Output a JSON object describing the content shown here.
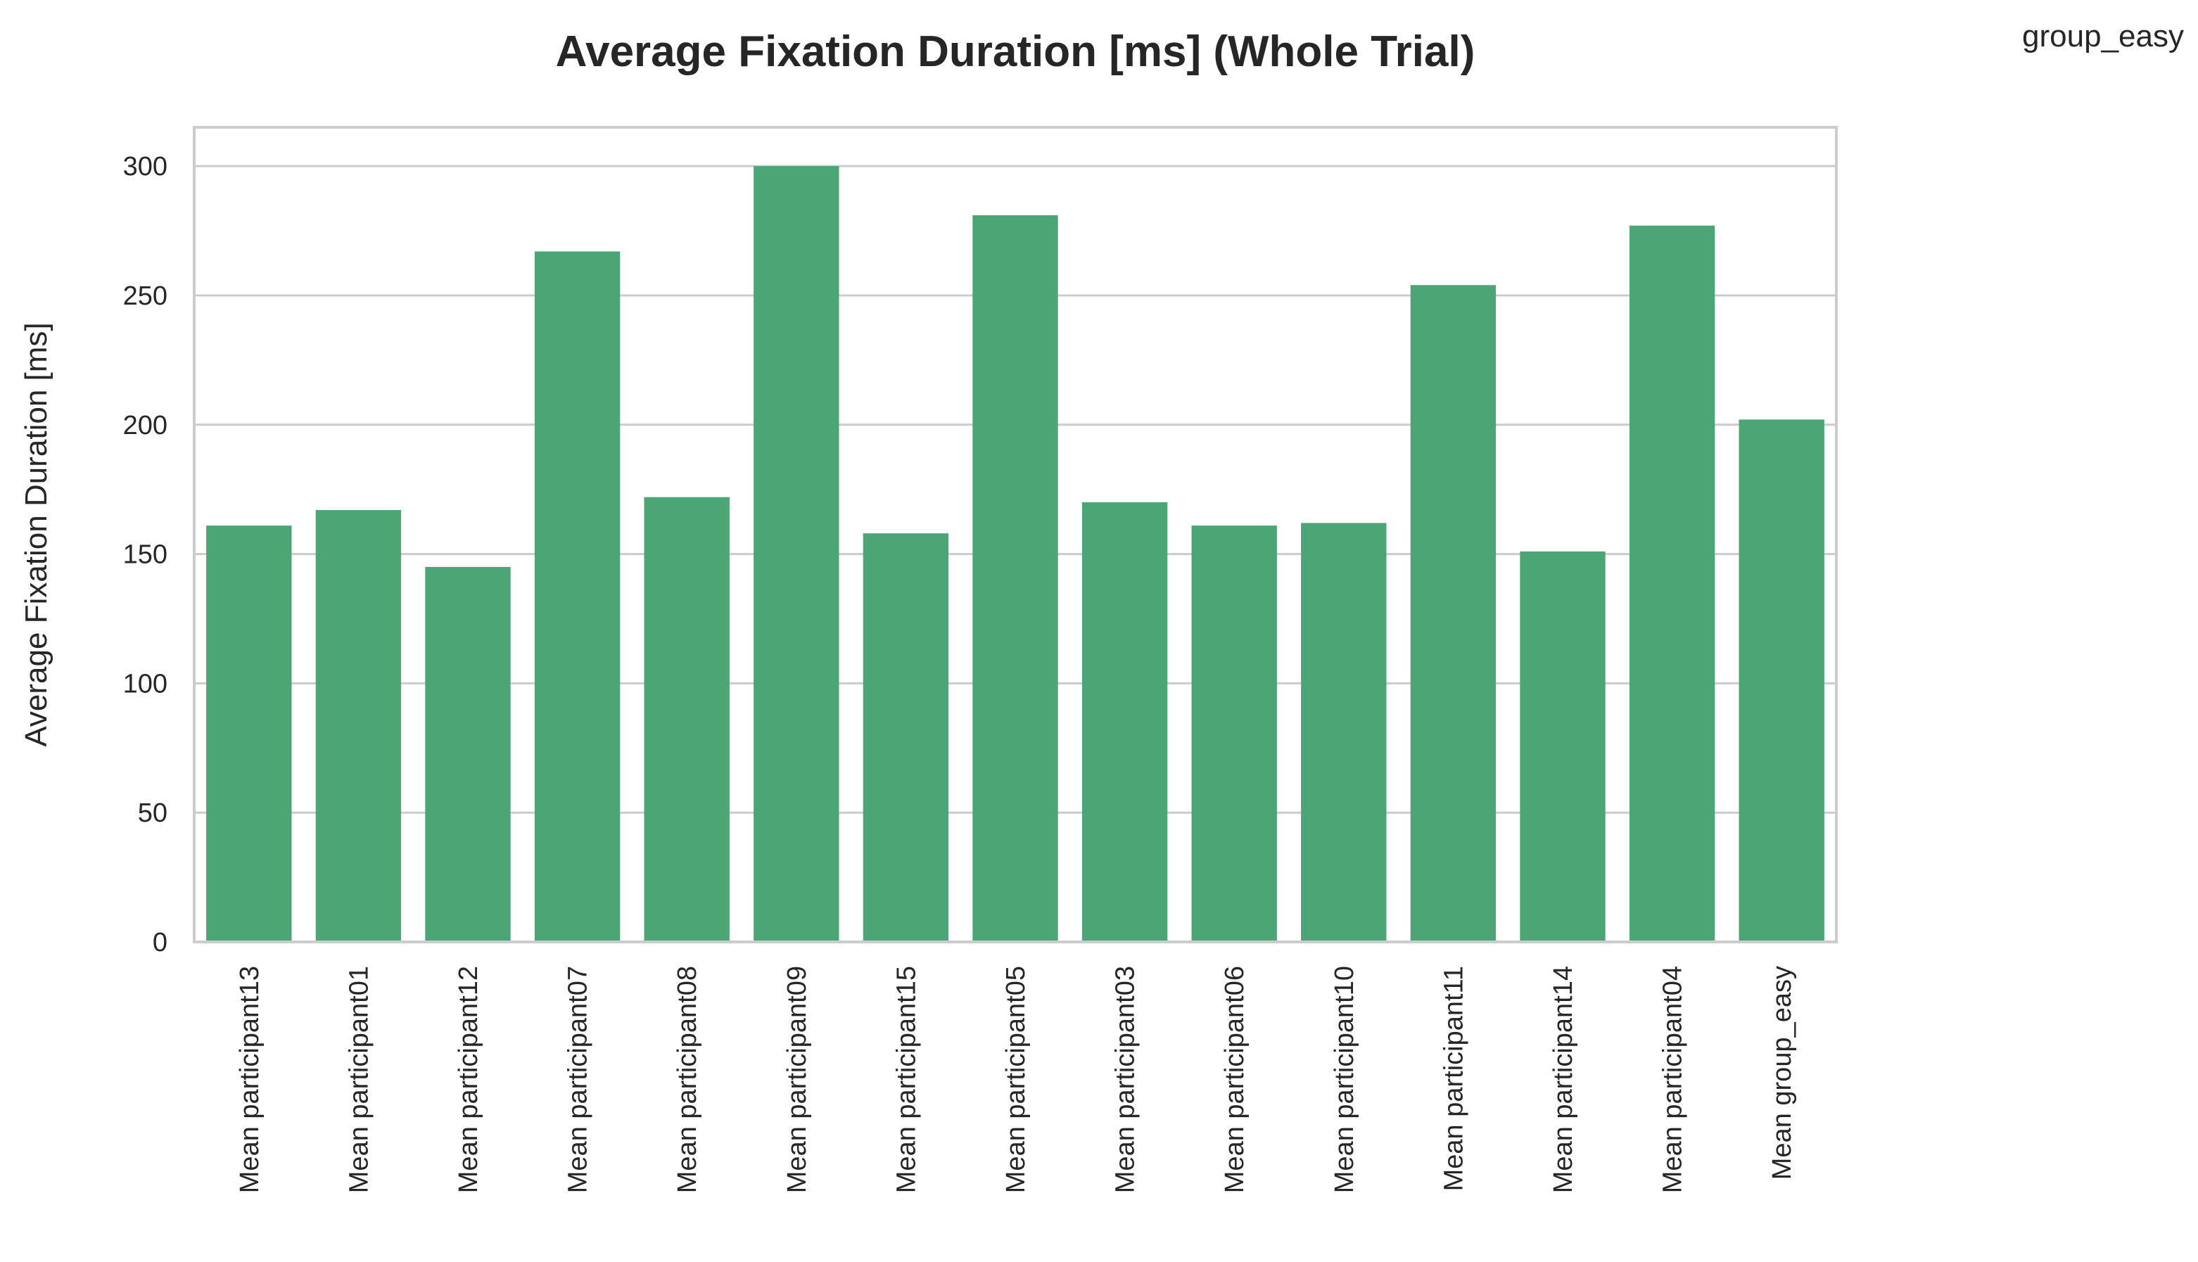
{
  "chart_data": {
    "type": "bar",
    "title": "Average Fixation Duration [ms] (Whole Trial)",
    "xlabel": "",
    "ylabel": "Average Fixation Duration [ms]",
    "legend_label": "group_easy",
    "legend_position": "top-right (outside plot)",
    "ylim": [
      0,
      315
    ],
    "yticks": [
      0,
      50,
      100,
      150,
      200,
      250,
      300
    ],
    "grid": "horizontal",
    "bar_color": "#4ba574",
    "categories": [
      "Mean participant13",
      "Mean participant01",
      "Mean participant12",
      "Mean participant07",
      "Mean participant08",
      "Mean participant09",
      "Mean participant15",
      "Mean participant05",
      "Mean participant03",
      "Mean participant06",
      "Mean participant10",
      "Mean participant11",
      "Mean participant14",
      "Mean participant04",
      "Mean group_easy"
    ],
    "values": [
      161,
      167,
      145,
      267,
      172,
      300,
      158,
      281,
      170,
      161,
      162,
      254,
      151,
      277,
      202
    ]
  }
}
